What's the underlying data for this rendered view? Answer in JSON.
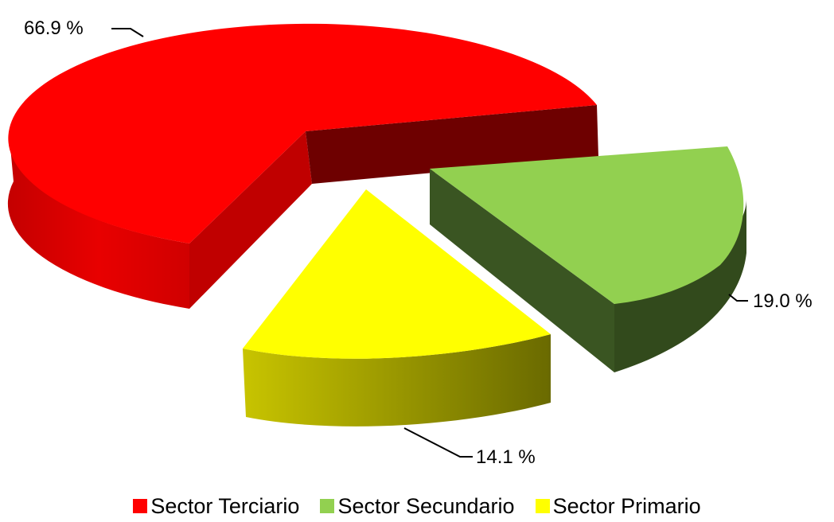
{
  "chart_data": {
    "type": "pie",
    "style": "3d-exploded",
    "title": "",
    "slices": [
      {
        "name": "Sector Terciario",
        "value": 66.9,
        "label": "66.9 %",
        "color": "#FF0000"
      },
      {
        "name": "Sector Secundario",
        "value": 19.0,
        "label": "19.0 %",
        "color": "#92D050"
      },
      {
        "name": "Sector Primario",
        "value": 14.1,
        "label": "14.1 %",
        "color": "#FFFF00"
      }
    ],
    "legend_position": "bottom"
  }
}
